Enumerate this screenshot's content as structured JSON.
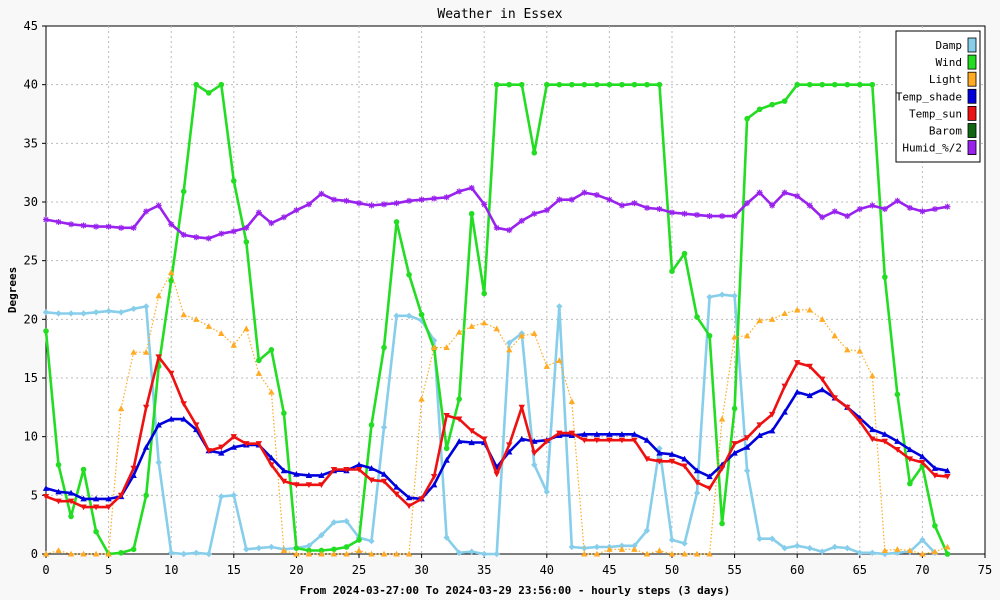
{
  "chart_data": {
    "type": "line",
    "title": "Weather in Essex",
    "xlabel": "From 2024-03-27:00 To 2024-03-29 23:56:00 - hourly steps (3 days)",
    "ylabel": "Degrees",
    "xlim": [
      0,
      75
    ],
    "ylim": [
      0,
      45
    ],
    "xticks": [
      0,
      5,
      10,
      15,
      20,
      25,
      30,
      35,
      40,
      45,
      50,
      55,
      60,
      65,
      70,
      75
    ],
    "yticks": [
      0,
      5,
      10,
      15,
      20,
      25,
      30,
      35,
      40,
      45
    ],
    "grid": true,
    "legend_position": "top-right",
    "series": [
      {
        "name": "Damp",
        "color": "#87ceeb",
        "marker": "diamond",
        "dashed": false,
        "values": [
          20.6,
          20.5,
          20.5,
          20.5,
          20.6,
          20.7,
          20.6,
          20.9,
          21.1,
          7.8,
          0.1,
          0.0,
          0.1,
          0.0,
          4.9,
          5.0,
          0.4,
          0.5,
          0.6,
          0.4,
          0.5,
          0.7,
          1.6,
          2.7,
          2.8,
          1.4,
          1.1,
          10.8,
          20.3,
          20.3,
          19.9,
          18.2,
          1.4,
          0.1,
          0.2,
          0.0,
          0.0,
          18.0,
          18.8,
          7.6,
          5.3,
          21.1,
          0.6,
          0.5,
          0.6,
          0.6,
          0.7,
          0.7,
          2.0,
          9.0,
          1.2,
          0.9,
          5.2,
          21.9,
          22.1,
          22.0,
          7.1,
          1.3,
          1.3,
          0.5,
          0.7,
          0.5,
          0.2,
          0.6,
          0.5,
          0.1,
          0.1,
          0.0,
          0.1,
          0.2,
          1.2,
          0.1
        ]
      },
      {
        "name": "Wind",
        "color": "#22dd22",
        "marker": "circle",
        "dashed": false,
        "values": [
          19.0,
          7.6,
          3.2,
          7.2,
          1.9,
          0.0,
          0.1,
          0.4,
          5.0,
          16.0,
          23.3,
          30.9,
          40.0,
          39.3,
          40.0,
          31.8,
          26.6,
          16.5,
          17.4,
          12.0,
          0.5,
          0.3,
          0.3,
          0.4,
          0.6,
          1.2,
          11.0,
          17.6,
          28.3,
          23.8,
          20.4,
          17.5,
          9.0,
          13.2,
          29.0,
          22.2,
          40.0,
          40.0,
          40.0,
          34.2,
          40.0,
          40.0,
          40.0,
          40.0,
          40.0,
          40.0,
          40.0,
          40.0,
          40.0,
          40.0,
          24.1,
          25.6,
          20.2,
          18.6,
          2.6,
          12.4,
          37.1,
          37.9,
          38.3,
          38.6,
          40.0,
          40.0,
          40.0,
          40.0,
          40.0,
          40.0,
          40.0,
          23.6,
          13.6,
          6.0,
          7.5,
          2.4,
          0.0
        ]
      },
      {
        "name": "Light",
        "color": "#ffaa22",
        "marker": "triangle-up",
        "dashed": true,
        "values": [
          0.0,
          0.3,
          0.0,
          0.0,
          0.0,
          0.0,
          12.4,
          17.2,
          17.2,
          22.0,
          24.0,
          20.4,
          20.0,
          19.4,
          18.8,
          17.8,
          19.2,
          15.4,
          13.8,
          0.3,
          0.0,
          0.0,
          0.0,
          0.0,
          0.0,
          0.3,
          0.0,
          0.0,
          0.0,
          0.0,
          13.2,
          17.6,
          17.6,
          18.9,
          19.4,
          19.7,
          19.2,
          17.4,
          18.6,
          18.8,
          16.0,
          16.5,
          13.0,
          0.0,
          0.0,
          0.4,
          0.4,
          0.4,
          0.0,
          0.3,
          0.0,
          0.0,
          0.0,
          0.0,
          11.5,
          18.5,
          18.6,
          19.9,
          20.0,
          20.5,
          20.8,
          20.8,
          20.0,
          18.6,
          17.4,
          17.3,
          15.2,
          0.3,
          0.4,
          0.3,
          0.0,
          0.2,
          0.6
        ]
      },
      {
        "name": "Temp_shade",
        "color": "#0000dd",
        "marker": "triangle-up",
        "dashed": false,
        "values": [
          5.6,
          5.3,
          5.2,
          4.7,
          4.7,
          4.7,
          4.9,
          6.7,
          9.1,
          11.0,
          11.5,
          11.5,
          10.6,
          8.8,
          8.6,
          9.1,
          9.3,
          9.3,
          8.2,
          7.1,
          6.8,
          6.7,
          6.7,
          7.1,
          7.1,
          7.6,
          7.3,
          6.8,
          5.7,
          4.8,
          4.7,
          5.9,
          8.0,
          9.6,
          9.5,
          9.5,
          7.4,
          8.7,
          9.8,
          9.6,
          9.7,
          10.1,
          10.1,
          10.2,
          10.2,
          10.2,
          10.2,
          10.2,
          9.7,
          8.6,
          8.5,
          8.1,
          7.1,
          6.6,
          7.6,
          8.6,
          9.1,
          10.1,
          10.5,
          12.1,
          13.8,
          13.5,
          14.0,
          13.3,
          12.5,
          11.6,
          10.6,
          10.2,
          9.6,
          8.9,
          8.3,
          7.3,
          7.1
        ]
      },
      {
        "name": "Temp_sun",
        "color": "#ee1111",
        "marker": "triangle-down",
        "dashed": false,
        "values": [
          4.9,
          4.5,
          4.5,
          4.0,
          4.0,
          4.0,
          5.0,
          7.3,
          12.5,
          16.8,
          15.4,
          12.8,
          11.0,
          8.8,
          9.1,
          10.0,
          9.4,
          9.4,
          7.6,
          6.2,
          5.9,
          5.9,
          5.9,
          7.2,
          7.2,
          7.2,
          6.3,
          6.2,
          5.1,
          4.1,
          4.7,
          6.6,
          11.8,
          11.5,
          10.5,
          9.8,
          6.8,
          9.3,
          12.5,
          8.6,
          9.6,
          10.3,
          10.3,
          9.7,
          9.7,
          9.7,
          9.7,
          9.7,
          8.1,
          7.9,
          7.9,
          7.5,
          6.1,
          5.6,
          7.3,
          9.4,
          9.9,
          11.0,
          11.9,
          14.3,
          16.3,
          16.0,
          14.9,
          13.3,
          12.5,
          11.3,
          9.8,
          9.6,
          8.9,
          8.1,
          7.8,
          6.7,
          6.6
        ]
      },
      {
        "name": "Barom",
        "color": "#116611",
        "marker": "none",
        "dashed": false,
        "values": []
      },
      {
        "name": "Humid_%/2",
        "color": "#9922ee",
        "marker": "star",
        "dashed": false,
        "values": [
          28.5,
          28.3,
          28.1,
          28.0,
          27.9,
          27.9,
          27.8,
          27.8,
          29.2,
          29.7,
          28.1,
          27.2,
          27.0,
          26.9,
          27.3,
          27.5,
          27.8,
          29.1,
          28.2,
          28.7,
          29.3,
          29.8,
          30.7,
          30.2,
          30.1,
          29.9,
          29.7,
          29.8,
          29.9,
          30.1,
          30.2,
          30.3,
          30.4,
          30.9,
          31.2,
          29.8,
          27.8,
          27.6,
          28.4,
          29.0,
          29.3,
          30.2,
          30.2,
          30.8,
          30.6,
          30.2,
          29.7,
          29.9,
          29.5,
          29.4,
          29.1,
          29.0,
          28.9,
          28.8,
          28.8,
          28.8,
          29.9,
          30.8,
          29.7,
          30.8,
          30.5,
          29.7,
          28.7,
          29.2,
          28.8,
          29.4,
          29.7,
          29.4,
          30.1,
          29.5,
          29.2,
          29.4,
          29.6
        ]
      }
    ]
  }
}
